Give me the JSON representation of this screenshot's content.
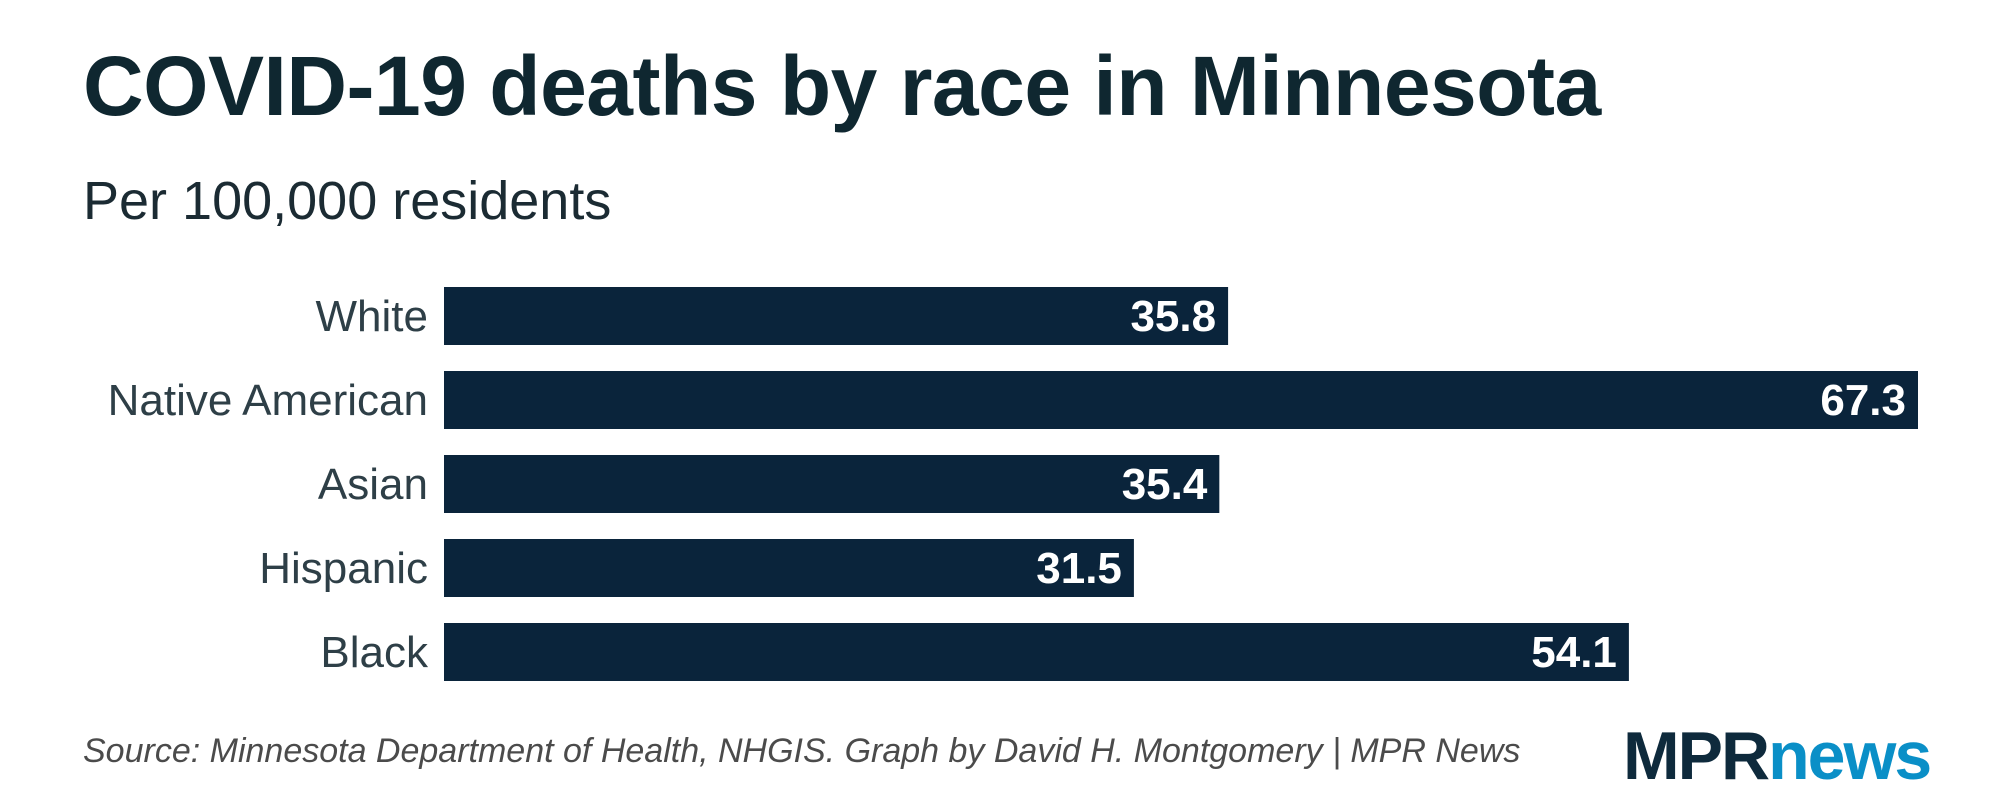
{
  "header": {
    "title": "COVID-19 deaths by race in Minnesota",
    "subtitle": "Per 100,000 residents"
  },
  "footer": {
    "source": "Source: Minnesota Department of Health, NHGIS. Graph by David H. Montgomery | MPR News",
    "logo_mpr": "MPR",
    "logo_news": "news"
  },
  "colors": {
    "bar": "#0a243b",
    "logo_mpr": "#0e2a3c",
    "logo_news": "#0a8fc7"
  },
  "chart_data": {
    "type": "bar",
    "orientation": "horizontal",
    "title": "COVID-19 deaths by race in Minnesota",
    "subtitle": "Per 100,000 residents",
    "categories": [
      "White",
      "Native American",
      "Asian",
      "Hispanic",
      "Black"
    ],
    "values": [
      35.8,
      67.3,
      35.4,
      31.5,
      54.1
    ],
    "value_labels": [
      "35.8",
      "67.3",
      "35.4",
      "31.5",
      "54.1"
    ],
    "xlim": [
      0,
      67.3
    ],
    "grid": false,
    "legend": "none"
  }
}
